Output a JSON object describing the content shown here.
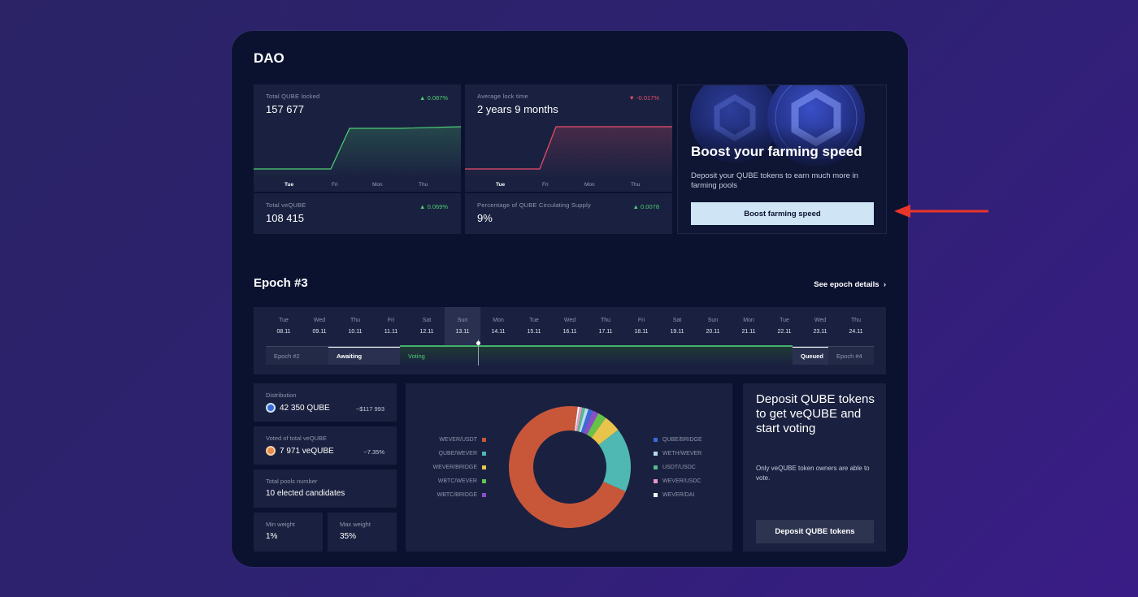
{
  "dao": {
    "title": "DAO",
    "stats": [
      {
        "label": "Total QUBE locked",
        "value": "157 677",
        "delta": "0.087%",
        "trend": "up"
      },
      {
        "label": "Average lock time",
        "value": "2 years 9 months",
        "delta": "-0.017%",
        "trend": "down"
      },
      {
        "label": "Total veQUBE",
        "value": "108 415",
        "delta": "0.069%",
        "trend": "up"
      },
      {
        "label": "Percentage of QUBE Circulating Supply",
        "value": "9%",
        "delta": "0.0078",
        "trend": "up"
      }
    ],
    "chart_days": [
      "Tue",
      "Fri",
      "Mon",
      "Thu"
    ],
    "promo": {
      "title": "Boost your farming speed",
      "text": "Deposit your QUBE tokens to earn much more in farming pools",
      "button": "Boost farming speed"
    }
  },
  "epoch": {
    "title": "Epoch #3",
    "details_link": "See epoch details",
    "days": [
      {
        "name": "Tue",
        "date": "08.11"
      },
      {
        "name": "Wed",
        "date": "09.11"
      },
      {
        "name": "Thu",
        "date": "10.11"
      },
      {
        "name": "Fri",
        "date": "11.11"
      },
      {
        "name": "Sat",
        "date": "12.11"
      },
      {
        "name": "Sun",
        "date": "13.11"
      },
      {
        "name": "Mon",
        "date": "14.11"
      },
      {
        "name": "Tue",
        "date": "15.11"
      },
      {
        "name": "Wed",
        "date": "16.11"
      },
      {
        "name": "Thu",
        "date": "17.11"
      },
      {
        "name": "Fri",
        "date": "18.11"
      },
      {
        "name": "Sat",
        "date": "19.11"
      },
      {
        "name": "Sun",
        "date": "20.11"
      },
      {
        "name": "Mon",
        "date": "21.11"
      },
      {
        "name": "Tue",
        "date": "22.11"
      },
      {
        "name": "Wed",
        "date": "23.11"
      },
      {
        "name": "Thu",
        "date": "24.11"
      }
    ],
    "phases": {
      "prev": "Epoch #2",
      "awaiting": "Awaiting",
      "voting": "Voting",
      "queued": "Queued",
      "next": "Epoch #4"
    }
  },
  "info": {
    "distribution": {
      "label": "Distribution",
      "value": "42 350 QUBE",
      "usd": "~$117 993"
    },
    "voted": {
      "label": "Voted of total veQUBE",
      "value": "7 971 veQUBE",
      "pct": "~7.35%"
    },
    "pools": {
      "label": "Total pools number",
      "value": "10 elected candidates"
    },
    "min_weight": {
      "label": "Min weight",
      "value": "1%"
    },
    "max_weight": {
      "label": "Max weight",
      "value": "35%"
    }
  },
  "chart_data": {
    "type": "pie",
    "title": "",
    "labels": [
      "WEVER/USDT",
      "QUBE/WEVER",
      "WEVER/BRIDGE",
      "WBTC/WEVER",
      "WBTC/BRIDGE",
      "QUBE/BRIDGE",
      "WETH/WEVER",
      "USDT/USDC",
      "WEVER/USDC",
      "WEVER/DAI"
    ],
    "values": [
      70.5,
      17,
      4.5,
      2.3,
      1.6,
      1.2,
      0.9,
      0.8,
      0.7,
      0.5
    ],
    "colors": [
      "#c8573a",
      "#4fb8b2",
      "#e8c44d",
      "#66c24a",
      "#8a4fc6",
      "#3a6ad8",
      "#b8ddea",
      "#56b98a",
      "#e79ac9",
      "#f4f4f4"
    ],
    "donut": true
  },
  "deposit": {
    "title": "Deposit QUBE tokens to get veQUBE and start voting",
    "text": "Only veQUBE token owners are able to vote.",
    "button": "Deposit QUBE tokens"
  },
  "colors": {
    "up": "#4ccf73",
    "down": "#ea4d6b",
    "accent_button": "#cfe4f4",
    "arrow": "#e8352a"
  }
}
